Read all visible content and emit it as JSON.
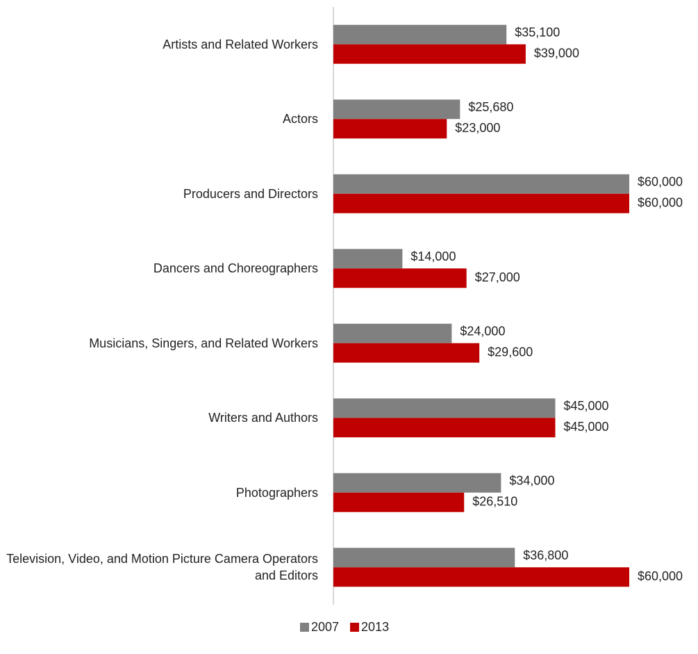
{
  "chart_data": {
    "type": "bar",
    "orientation": "horizontal",
    "categories": [
      "Artists and Related Workers",
      "Actors",
      "Producers and Directors",
      "Dancers and Choreographers",
      "Musicians, Singers, and Related Workers",
      "Writers and Authors",
      "Photographers",
      "Television, Video, and Motion Picture Camera Operators and Editors"
    ],
    "series": [
      {
        "name": "2007",
        "color": "#808080",
        "values": [
          35100,
          25680,
          60000,
          14000,
          24000,
          45000,
          34000,
          36800
        ],
        "value_labels": [
          "$35,100",
          "$25,680",
          "$60,000",
          "$14,000",
          "$24,000",
          "$45,000",
          "$34,000",
          "$36,800"
        ]
      },
      {
        "name": "2013",
        "color": "#c00000",
        "values": [
          39000,
          23000,
          60000,
          27000,
          29600,
          45000,
          26510,
          60000
        ],
        "value_labels": [
          "$39,000",
          "$23,000",
          "$60,000",
          "$27,000",
          "$29,600",
          "$45,000",
          "$26,510",
          "$60,000"
        ]
      }
    ],
    "xlim": [
      0,
      60000
    ],
    "legend": "bottom"
  }
}
